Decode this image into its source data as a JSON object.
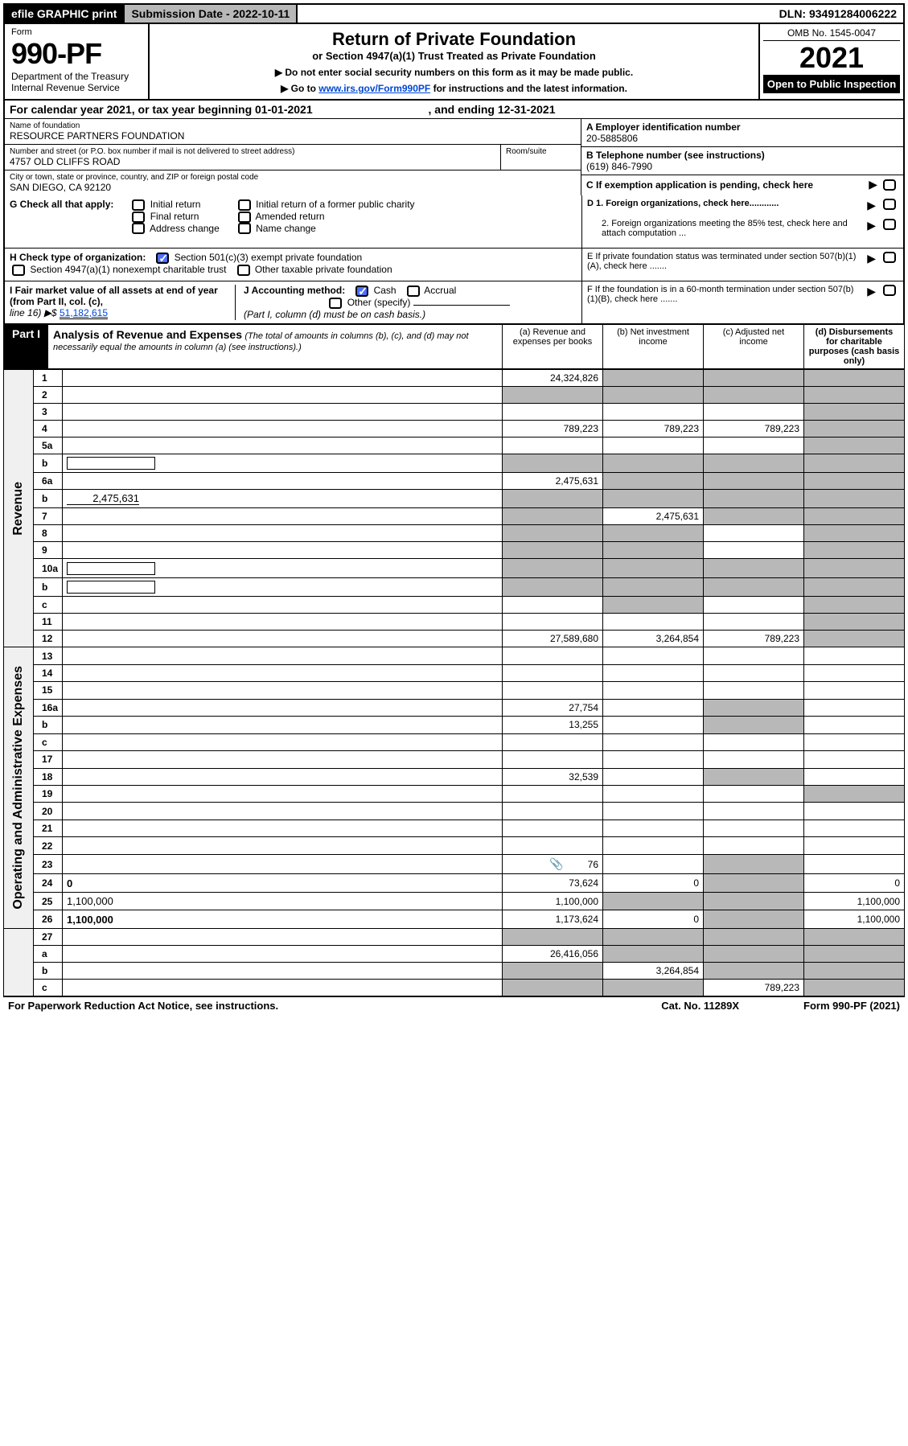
{
  "top_bar": {
    "efile": "efile GRAPHIC print",
    "submission": "Submission Date - 2022-10-11",
    "dln": "DLN: 93491284006222"
  },
  "header": {
    "form": "Form",
    "f990": "990-PF",
    "dept": "Department of the Treasury",
    "irs": "Internal Revenue Service",
    "title": "Return of Private Foundation",
    "subtitle": "or Section 4947(a)(1) Trust Treated as Private Foundation",
    "note1": "▶ Do not enter social security numbers on this form as it may be made public.",
    "note2_pre": "▶ Go to ",
    "note2_link": "www.irs.gov/Form990PF",
    "note2_post": " for instructions and the latest information.",
    "omb": "OMB No. 1545-0047",
    "year": "2021",
    "open": "Open to Public Inspection"
  },
  "calendar": {
    "text_pre": "For calendar year 2021, or tax year beginning ",
    "begin": "01-01-2021",
    "text_mid": ", and ending ",
    "end": "12-31-2021"
  },
  "foundation": {
    "name_label": "Name of foundation",
    "name": "RESOURCE PARTNERS FOUNDATION",
    "addr_label": "Number and street (or P.O. box number if mail is not delivered to street address)",
    "addr": "4757 OLD CLIFFS ROAD",
    "room_label": "Room/suite",
    "city_label": "City or town, state or province, country, and ZIP or foreign postal code",
    "city": "SAN DIEGO, CA  92120",
    "ein_label": "A Employer identification number",
    "ein": "20-5885806",
    "phone_label": "B Telephone number (see instructions)",
    "phone": "(619) 846-7990",
    "c_label": "C If exemption application is pending, check here"
  },
  "sectionG": {
    "label": "G Check all that apply:",
    "opts": [
      "Initial return",
      "Final return",
      "Address change",
      "Initial return of a former public charity",
      "Amended return",
      "Name change"
    ]
  },
  "sectionD": {
    "d1": "D 1. Foreign organizations, check here............",
    "d2": "2. Foreign organizations meeting the 85% test, check here and attach computation ...",
    "e": "E  If private foundation status was terminated under section 507(b)(1)(A), check here .......",
    "f": "F  If the foundation is in a 60-month termination under section 507(b)(1)(B), check here ......."
  },
  "sectionH": {
    "label": "H Check type of organization:",
    "opt1": "Section 501(c)(3) exempt private foundation",
    "opt2": "Section 4947(a)(1) nonexempt charitable trust",
    "opt3": "Other taxable private foundation"
  },
  "sectionI": {
    "label": "I Fair market value of all assets at end of year (from Part II, col. (c),",
    "line16": "line 16) ▶$ ",
    "value": "51,182,615"
  },
  "sectionJ": {
    "label": "J Accounting method:",
    "cash": "Cash",
    "accrual": "Accrual",
    "other": "Other (specify)",
    "note": "(Part I, column (d) must be on cash basis.)"
  },
  "part1": {
    "label": "Part I",
    "title": "Analysis of Revenue and Expenses",
    "subtitle": "(The total of amounts in columns (b), (c), and (d) may not necessarily equal the amounts in column (a) (see instructions).)",
    "col_a": "(a)   Revenue and expenses per books",
    "col_b": "(b)   Net investment income",
    "col_c": "(c)   Adjusted net income",
    "col_d": "(d)   Disbursements for charitable purposes (cash basis only)"
  },
  "revenue_label": "Revenue",
  "expenses_label": "Operating and Administrative Expenses",
  "rows": [
    {
      "n": "1",
      "d": "",
      "a": "24,324,826",
      "b": "",
      "c": "",
      "b_gray": true,
      "c_gray": true,
      "d_gray": true
    },
    {
      "n": "2",
      "d": "",
      "a": "",
      "b": "",
      "c": "",
      "a_gray": true,
      "b_gray": true,
      "c_gray": true,
      "d_gray": true,
      "bold_not": true
    },
    {
      "n": "3",
      "d": "",
      "a": "",
      "b": "",
      "c": "",
      "d_gray": true
    },
    {
      "n": "4",
      "d": "",
      "a": "789,223",
      "b": "789,223",
      "c": "789,223",
      "d_gray": true
    },
    {
      "n": "5a",
      "d": "",
      "a": "",
      "b": "",
      "c": "",
      "d_gray": true
    },
    {
      "n": "b",
      "d": "",
      "a": "",
      "b": "",
      "c": "",
      "a_gray": true,
      "b_gray": true,
      "c_gray": true,
      "d_gray": true,
      "inline_box": true
    },
    {
      "n": "6a",
      "d": "",
      "a": "2,475,631",
      "b": "",
      "c": "",
      "b_gray": true,
      "c_gray": true,
      "d_gray": true
    },
    {
      "n": "b",
      "d": "",
      "a": "",
      "b": "",
      "c": "",
      "a_gray": true,
      "b_gray": true,
      "c_gray": true,
      "d_gray": true,
      "inline_val": "2,475,631"
    },
    {
      "n": "7",
      "d": "",
      "a": "",
      "b": "2,475,631",
      "c": "",
      "a_gray": true,
      "c_gray": true,
      "d_gray": true
    },
    {
      "n": "8",
      "d": "",
      "a": "",
      "b": "",
      "c": "",
      "a_gray": true,
      "b_gray": true,
      "d_gray": true
    },
    {
      "n": "9",
      "d": "",
      "a": "",
      "b": "",
      "c": "",
      "a_gray": true,
      "b_gray": true,
      "d_gray": true
    },
    {
      "n": "10a",
      "d": "",
      "a": "",
      "b": "",
      "c": "",
      "a_gray": true,
      "b_gray": true,
      "c_gray": true,
      "d_gray": true,
      "inline_box": true
    },
    {
      "n": "b",
      "d": "",
      "a": "",
      "b": "",
      "c": "",
      "a_gray": true,
      "b_gray": true,
      "c_gray": true,
      "d_gray": true,
      "inline_box": true
    },
    {
      "n": "c",
      "d": "",
      "a": "",
      "b": "",
      "c": "",
      "b_gray": true,
      "d_gray": true
    },
    {
      "n": "11",
      "d": "",
      "a": "",
      "b": "",
      "c": "",
      "d_gray": true
    },
    {
      "n": "12",
      "d": "",
      "a": "27,589,680",
      "b": "3,264,854",
      "c": "789,223",
      "bold": true,
      "d_gray": true
    }
  ],
  "exp_rows": [
    {
      "n": "13",
      "d": "",
      "a": "",
      "b": "",
      "c": ""
    },
    {
      "n": "14",
      "d": "",
      "a": "",
      "b": "",
      "c": ""
    },
    {
      "n": "15",
      "d": "",
      "a": "",
      "b": "",
      "c": ""
    },
    {
      "n": "16a",
      "d": "",
      "a": "27,754",
      "b": "",
      "c": "",
      "c_gray": true
    },
    {
      "n": "b",
      "d": "",
      "a": "13,255",
      "b": "",
      "c": "",
      "c_gray": true
    },
    {
      "n": "c",
      "d": "",
      "a": "",
      "b": "",
      "c": ""
    },
    {
      "n": "17",
      "d": "",
      "a": "",
      "b": "",
      "c": ""
    },
    {
      "n": "18",
      "d": "",
      "a": "32,539",
      "b": "",
      "c": "",
      "c_gray": true
    },
    {
      "n": "19",
      "d": "",
      "a": "",
      "b": "",
      "c": "",
      "d_gray": true
    },
    {
      "n": "20",
      "d": "",
      "a": "",
      "b": "",
      "c": ""
    },
    {
      "n": "21",
      "d": "",
      "a": "",
      "b": "",
      "c": ""
    },
    {
      "n": "22",
      "d": "",
      "a": "",
      "b": "",
      "c": ""
    },
    {
      "n": "23",
      "d": "",
      "a": "76",
      "b": "",
      "c": "",
      "c_gray": true,
      "has_icon": true
    },
    {
      "n": "24",
      "d": "0",
      "a": "73,624",
      "b": "0",
      "c": "",
      "bold": true,
      "c_gray": true
    },
    {
      "n": "25",
      "d": "1,100,000",
      "a": "1,100,000",
      "b": "",
      "c": "",
      "b_gray": true,
      "c_gray": true
    },
    {
      "n": "26",
      "d": "1,100,000",
      "a": "1,173,624",
      "b": "0",
      "c": "",
      "bold": true,
      "c_gray": true
    }
  ],
  "final_rows": [
    {
      "n": "27",
      "d": "",
      "a": "",
      "b": "",
      "c": "",
      "a_gray": true,
      "b_gray": true,
      "c_gray": true,
      "d_gray": true
    },
    {
      "n": "a",
      "d": "",
      "a": "26,416,056",
      "b": "",
      "c": "",
      "bold": true,
      "b_gray": true,
      "c_gray": true,
      "d_gray": true
    },
    {
      "n": "b",
      "d": "",
      "a": "",
      "b": "3,264,854",
      "c": "",
      "bold": true,
      "a_gray": true,
      "c_gray": true,
      "d_gray": true
    },
    {
      "n": "c",
      "d": "",
      "a": "",
      "b": "",
      "c": "789,223",
      "bold": true,
      "a_gray": true,
      "b_gray": true,
      "d_gray": true
    }
  ],
  "footer": {
    "left": "For Paperwork Reduction Act Notice, see instructions.",
    "mid": "Cat. No. 11289X",
    "right": "Form 990-PF (2021)"
  }
}
